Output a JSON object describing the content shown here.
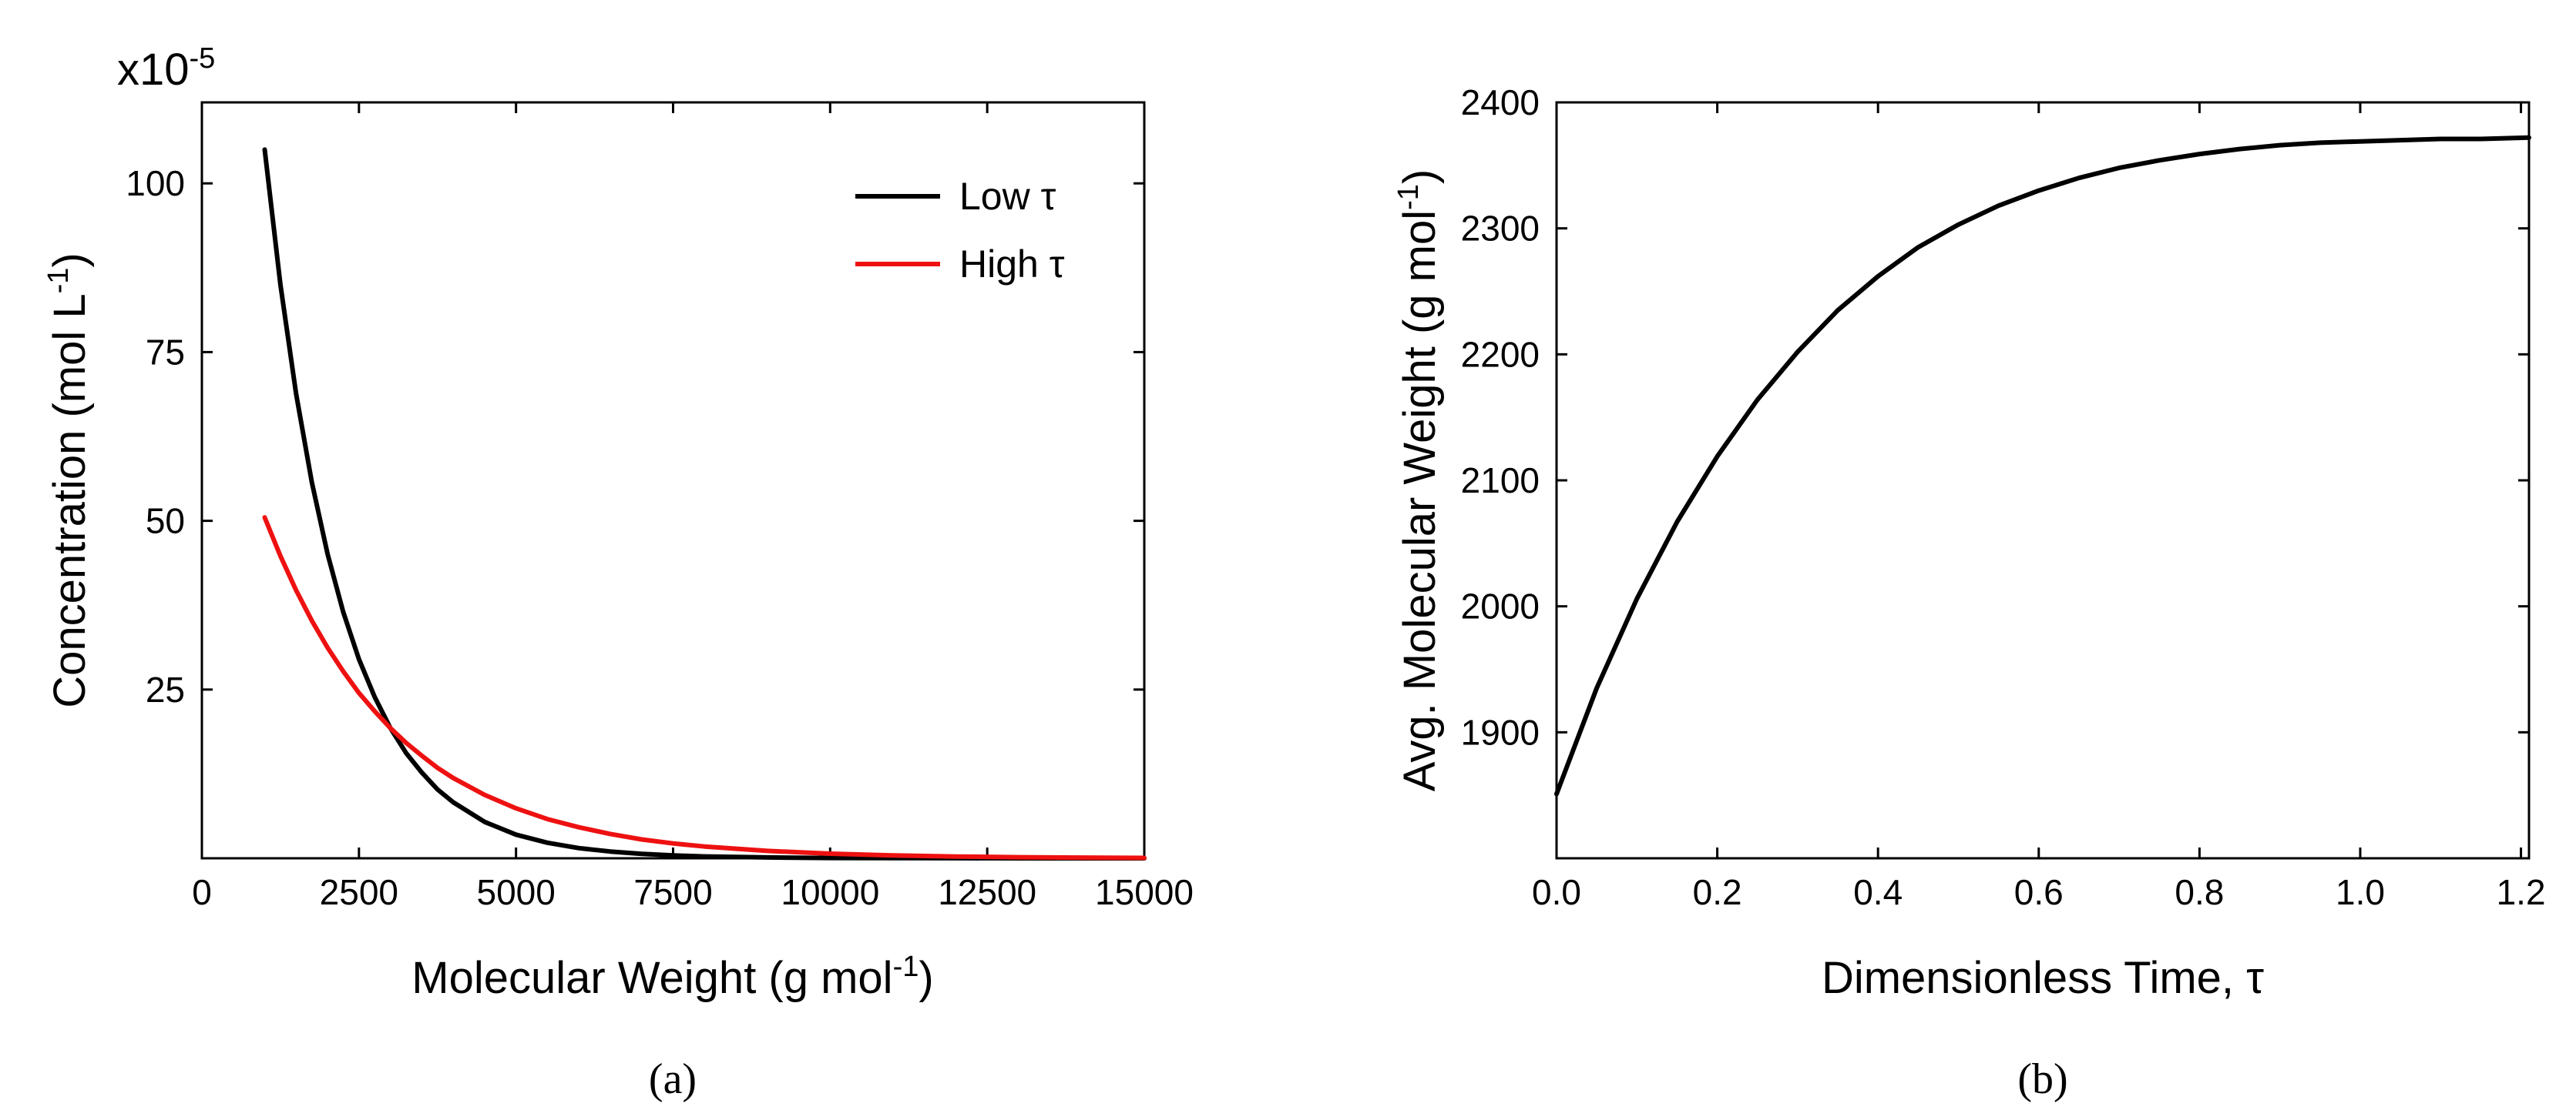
{
  "chart_data": [
    {
      "id": "a",
      "type": "line",
      "caption": "(a)",
      "xlabel": "Molecular Weight (g mol",
      "xlabel_sup": "-1",
      "xlabel_end": ")",
      "ylabel": "Concentration (mol L",
      "ylabel_sup": "-1",
      "ylabel_end": ")",
      "y_multiplier": "x10",
      "y_multiplier_sup": "-5",
      "xlim": [
        0,
        15000
      ],
      "ylim": [
        0,
        112
      ],
      "x_ticks": [
        0,
        2500,
        5000,
        7500,
        10000,
        12500,
        15000
      ],
      "x_tick_labels": [
        "0",
        "2500",
        "5000",
        "7500",
        "10000",
        "12500",
        "15000"
      ],
      "y_ticks": [
        25,
        50,
        75,
        100
      ],
      "y_tick_labels": [
        "25",
        "50",
        "75",
        "100"
      ],
      "legend_position": "top-right",
      "series": [
        {
          "name": "Low τ",
          "color": "#000000",
          "x": [
            1000,
            1250,
            1500,
            1750,
            2000,
            2250,
            2500,
            2750,
            3000,
            3250,
            3500,
            3750,
            4000,
            4500,
            5000,
            5500,
            6000,
            6500,
            7000,
            7500,
            8000,
            9000,
            10000,
            11000,
            12000,
            13000,
            14000,
            15000
          ],
          "values": [
            105,
            85,
            68.8,
            55.7,
            45.1,
            36.5,
            29.5,
            23.9,
            19.3,
            15.6,
            12.7,
            10.2,
            8.3,
            5.4,
            3.5,
            2.3,
            1.5,
            1.0,
            0.65,
            0.42,
            0.27,
            0.12,
            0.05,
            0.02,
            0.01,
            0.0,
            0.0,
            0.0
          ]
        },
        {
          "name": "High τ",
          "color": "#ee1111",
          "x": [
            1000,
            1250,
            1500,
            1750,
            2000,
            2250,
            2500,
            2750,
            3000,
            3250,
            3500,
            3750,
            4000,
            4500,
            5000,
            5500,
            6000,
            6500,
            7000,
            7500,
            8000,
            9000,
            10000,
            11000,
            12000,
            13000,
            14000,
            15000
          ],
          "values": [
            50.5,
            44.8,
            39.7,
            35.2,
            31.2,
            27.7,
            24.5,
            21.8,
            19.3,
            17.1,
            15.2,
            13.4,
            11.9,
            9.4,
            7.4,
            5.8,
            4.6,
            3.6,
            2.8,
            2.2,
            1.75,
            1.1,
            0.68,
            0.42,
            0.26,
            0.16,
            0.1,
            0.06
          ]
        }
      ]
    },
    {
      "id": "b",
      "type": "line",
      "caption": "(b)",
      "xlabel": "Dimensionless Time, τ",
      "ylabel": "Avg. Molecular Weight (g mol",
      "ylabel_sup": "-1",
      "ylabel_end": ")",
      "xlim": [
        0,
        1.21
      ],
      "ylim": [
        1800,
        2400
      ],
      "x_ticks": [
        0,
        0.2,
        0.4,
        0.6,
        0.8,
        1.0,
        1.2
      ],
      "x_tick_labels": [
        "0.0",
        "0.2",
        "0.4",
        "0.6",
        "0.8",
        "1.0",
        "1.2"
      ],
      "y_ticks": [
        1900,
        2000,
        2100,
        2200,
        2300,
        2400
      ],
      "y_tick_labels": [
        "1900",
        "2000",
        "2100",
        "2200",
        "2300",
        "2400"
      ],
      "series": [
        {
          "name": "Avg. Molecular Weight",
          "color": "#000000",
          "x": [
            0,
            0.05,
            0.1,
            0.15,
            0.2,
            0.25,
            0.3,
            0.35,
            0.4,
            0.45,
            0.5,
            0.55,
            0.6,
            0.65,
            0.7,
            0.75,
            0.8,
            0.85,
            0.9,
            0.95,
            1.0,
            1.05,
            1.1,
            1.15,
            1.21
          ],
          "values": [
            1851,
            1935,
            2006,
            2067,
            2119,
            2164,
            2202,
            2235,
            2262,
            2285,
            2303,
            2318,
            2330,
            2340,
            2348,
            2354,
            2359,
            2363,
            2366,
            2368,
            2369,
            2370,
            2371,
            2371,
            2372
          ]
        }
      ]
    }
  ]
}
